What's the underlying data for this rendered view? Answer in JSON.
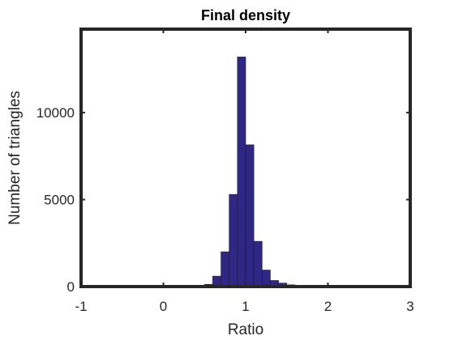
{
  "chart_data": {
    "type": "bar",
    "title": "Final density",
    "xlabel": "Ratio",
    "ylabel": "Number of triangles",
    "xlim": [
      -1,
      3
    ],
    "ylim": [
      0,
      14800
    ],
    "xticks": [
      "-1",
      "0",
      "1",
      "2",
      "3"
    ],
    "yticks": [
      "0",
      "5000",
      "10000"
    ],
    "bin_width": 0.1,
    "bins": [
      {
        "x": 0.55,
        "value": 130
      },
      {
        "x": 0.65,
        "value": 600
      },
      {
        "x": 0.75,
        "value": 2000
      },
      {
        "x": 0.85,
        "value": 5300
      },
      {
        "x": 0.95,
        "value": 13200
      },
      {
        "x": 1.05,
        "value": 8150
      },
      {
        "x": 1.15,
        "value": 2600
      },
      {
        "x": 1.25,
        "value": 950
      },
      {
        "x": 1.35,
        "value": 350
      },
      {
        "x": 1.45,
        "value": 200
      },
      {
        "x": 1.55,
        "value": 100
      },
      {
        "x": 1.65,
        "value": 40
      }
    ],
    "bar_color": "#2e2785",
    "edge_color": "#1a1a3a",
    "grid": false
  }
}
